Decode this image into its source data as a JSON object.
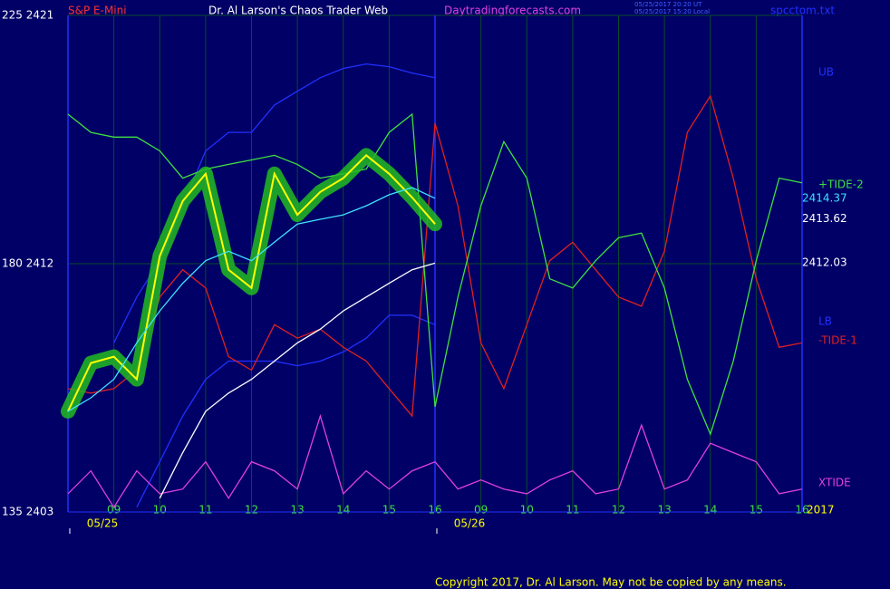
{
  "chart_data": {
    "type": "line",
    "title": "Dr. Al Larson's Chaos Trader Web",
    "symbol": "S&P E-Mini",
    "website": "Daytradingforecasts.com",
    "timestamps": [
      "05/25/2017 20:20 UT",
      "05/25/2017 15:20 Local"
    ],
    "file": "spcctom.txt",
    "copyright": "Copyright 2017, Dr. Al Larson. May not be copied by any means.",
    "year_label": "2017",
    "date_marks": [
      {
        "value": 0,
        "label": "05/25"
      },
      {
        "value": 8,
        "label": "05/26"
      }
    ],
    "xlim": [
      0,
      16
    ],
    "xticks": [
      {
        "value": 1,
        "label": "09"
      },
      {
        "value": 2,
        "label": "10"
      },
      {
        "value": 3,
        "label": "11"
      },
      {
        "value": 4,
        "label": "12"
      },
      {
        "value": 5,
        "label": "13"
      },
      {
        "value": 6,
        "label": "14"
      },
      {
        "value": 7,
        "label": "15"
      },
      {
        "value": 8,
        "label": "16"
      },
      {
        "value": 9,
        "label": "09"
      },
      {
        "value": 10,
        "label": "10"
      },
      {
        "value": 11,
        "label": "11"
      },
      {
        "value": 12,
        "label": "12"
      },
      {
        "value": 13,
        "label": "13"
      },
      {
        "value": 14,
        "label": "14"
      },
      {
        "value": 15,
        "label": "15"
      },
      {
        "value": 16,
        "label": "16"
      }
    ],
    "ylim": [
      2403,
      2421
    ],
    "yticks": [
      {
        "value": 2403,
        "label": "135  2403"
      },
      {
        "value": 2412,
        "label": "180  2412"
      },
      {
        "value": 2421,
        "label": "225  2421"
      }
    ],
    "grid": true,
    "price_labels": [
      2414.37,
      2413.62,
      2412.03
    ],
    "price_label_colors": [
      "#40e0ff",
      "#ffffff",
      "#ffffff"
    ],
    "x": [
      0,
      0.5,
      1,
      1.5,
      2,
      2.5,
      3,
      3.5,
      4,
      4.5,
      5,
      5.5,
      6,
      6.5,
      7,
      7.5,
      8,
      8.5,
      9,
      9.5,
      10,
      10.5,
      11,
      11.5,
      12,
      12.5,
      13,
      13.5,
      14,
      14.5,
      15,
      15.5,
      16
    ],
    "series": [
      {
        "color": "#ffff00",
        "halo": "#22bb22",
        "values": [
          2406.65,
          2408.4,
          2408.63,
          2407.81,
          2412.28,
          2414.27,
          2415.26,
          2411.78,
          2411.12,
          2415.26,
          2413.77,
          2414.6,
          2415.1,
          2415.93,
          2415.26,
          2414.4,
          2413.44,
          null,
          null,
          null,
          null,
          null,
          null,
          null,
          null,
          null,
          null,
          null,
          null,
          null,
          null,
          null,
          null
        ]
      },
      {
        "color": "#40e0ff",
        "values": [
          2406.65,
          2407.14,
          2407.81,
          2409.13,
          2410.29,
          2411.29,
          2412.11,
          2412.45,
          2412.11,
          2412.78,
          2413.44,
          2413.61,
          2413.77,
          2414.1,
          2414.5,
          2414.76,
          2414.37,
          null,
          null,
          null,
          null,
          null,
          null,
          null,
          null,
          null,
          null,
          null,
          null,
          null,
          null,
          null,
          null
        ]
      },
      {
        "color": "#ffffff",
        "values": [
          null,
          null,
          null,
          null,
          2403.5,
          2405.15,
          2406.65,
          2407.31,
          2407.81,
          2408.47,
          2409.13,
          2409.63,
          2410.29,
          2410.79,
          2411.29,
          2411.78,
          2412.02,
          null,
          null,
          null,
          null,
          null,
          null,
          null,
          null,
          null,
          null,
          null,
          null,
          null,
          null,
          null,
          null
        ]
      },
      {
        "name": "+TIDE-2",
        "color": "#40e040",
        "values": [
          2417.42,
          2416.76,
          2416.59,
          2416.59,
          2416.09,
          2415.1,
          2415.43,
          2415.6,
          2415.76,
          2415.93,
          2415.6,
          2415.1,
          2415.26,
          2415.43,
          2416.76,
          2417.42,
          2406.81,
          2410.79,
          2414.1,
          2416.42,
          2415.1,
          2411.45,
          2411.12,
          2412.11,
          2412.94,
          2413.11,
          2411.12,
          2407.81,
          2405.82,
          2408.47,
          2412.11,
          2415.1,
          2414.93
        ]
      },
      {
        "name": "-TIDE-1",
        "color": "#e02020",
        "values": [
          2407.47,
          2407.31,
          2407.47,
          2408.14,
          2410.79,
          2411.78,
          2411.12,
          2408.63,
          2408.14,
          2409.79,
          2409.3,
          2409.63,
          2408.97,
          2408.47,
          2407.47,
          2406.48,
          2417.09,
          2414.1,
          2409.13,
          2407.47,
          2409.79,
          2412.11,
          2412.78,
          2411.78,
          2410.79,
          2410.46,
          2412.45,
          2416.76,
          2418.08,
          2415.1,
          2411.45,
          2408.97,
          2409.13
        ]
      },
      {
        "name": "UB",
        "color": "#2030ff",
        "values": [
          null,
          null,
          2409.13,
          2410.79,
          2412.11,
          2414.1,
          2416.09,
          2416.76,
          2416.76,
          2417.75,
          2418.25,
          2418.74,
          2419.08,
          2419.24,
          2419.14,
          2418.91,
          2418.74,
          null,
          null,
          null,
          null,
          null,
          null,
          null,
          null,
          null,
          null,
          null,
          null,
          null,
          null,
          null,
          null
        ]
      },
      {
        "name": "LB",
        "color": "#2030ff",
        "values": [
          null,
          null,
          null,
          2403.17,
          2404.82,
          2406.48,
          2407.81,
          2408.47,
          2408.47,
          2408.47,
          2408.3,
          2408.47,
          2408.8,
          2409.3,
          2410.13,
          2410.13,
          2409.79,
          null,
          null,
          null,
          null,
          null,
          null,
          null,
          null,
          null,
          null,
          null,
          null,
          null,
          null,
          null,
          null
        ]
      },
      {
        "name": "XTIDE",
        "color": "#e040e0",
        "values": [
          2403.66,
          2404.49,
          2403.17,
          2404.49,
          2403.66,
          2403.83,
          2404.82,
          2403.5,
          2404.82,
          2404.49,
          2403.83,
          2406.48,
          2403.66,
          2404.49,
          2403.83,
          2404.49,
          2404.82,
          2403.83,
          2404.16,
          2403.83,
          2403.66,
          2404.16,
          2404.49,
          2403.66,
          2403.83,
          2406.15,
          2403.83,
          2404.16,
          2405.49,
          2405.15,
          2404.82,
          2403.66,
          2403.83
        ]
      }
    ]
  }
}
